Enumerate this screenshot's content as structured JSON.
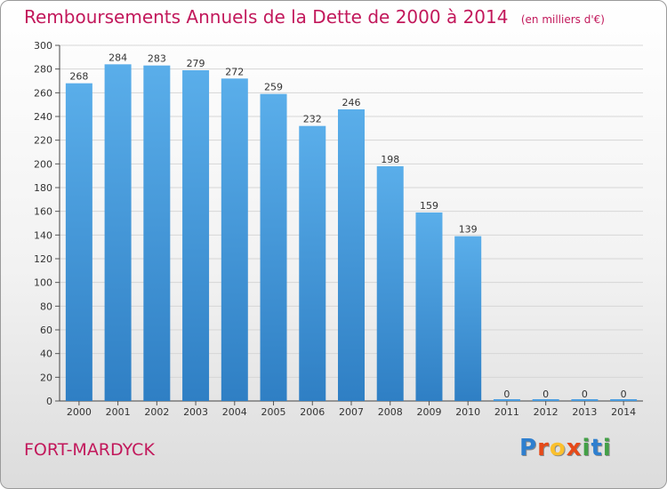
{
  "title": "Remboursements Annuels de la Dette de 2000 à 2014",
  "subtitle": "(en milliers d'€)",
  "place": "FORT-MARDYCK",
  "logo": {
    "p": "P",
    "r": "r",
    "o": "o",
    "x": "x",
    "i": "i",
    "t": "t",
    "i2": "i"
  },
  "colors": {
    "bar": "#4a9de0",
    "barTop": "#5aaeea",
    "title": "#c2185b"
  },
  "chart_data": {
    "type": "bar",
    "title": "Remboursements Annuels de la Dette de 2000 à 2014",
    "ylabel": "en milliers d'€",
    "xlabel": "",
    "categories": [
      "2000",
      "2001",
      "2002",
      "2003",
      "2004",
      "2005",
      "2006",
      "2007",
      "2008",
      "2009",
      "2010",
      "2011",
      "2012",
      "2013",
      "2014"
    ],
    "values": [
      268,
      284,
      283,
      279,
      272,
      259,
      232,
      246,
      198,
      159,
      139,
      0,
      0,
      0,
      0
    ],
    "ylim": [
      0,
      300
    ],
    "yticks": [
      0,
      20,
      40,
      60,
      80,
      100,
      120,
      140,
      160,
      180,
      200,
      220,
      240,
      260,
      280,
      300
    ],
    "grid": true
  }
}
